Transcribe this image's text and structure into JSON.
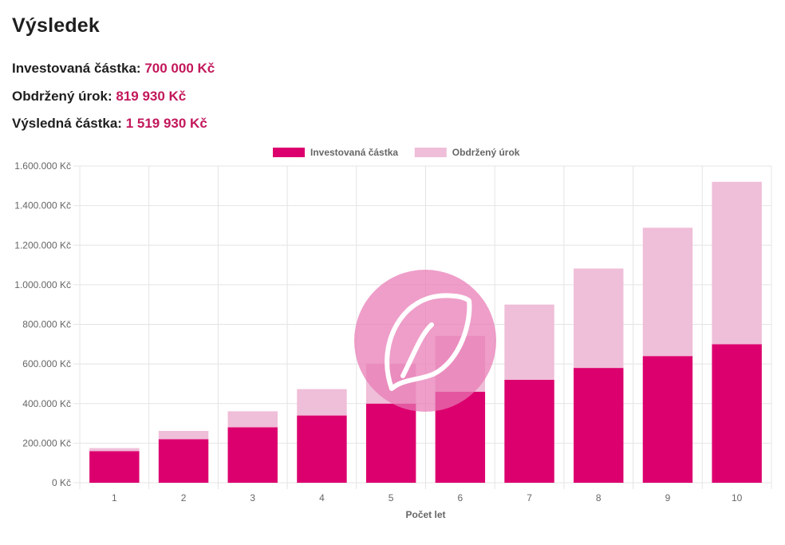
{
  "result": {
    "title": "Výsledek",
    "stats": [
      {
        "label": "Investovaná částka:",
        "value": "700 000 Kč"
      },
      {
        "label": "Obdržený úrok:",
        "value": "819 930 Kč"
      },
      {
        "label": "Výsledná částka:",
        "value": "1 519 930 Kč"
      }
    ]
  },
  "chart_data": {
    "type": "bar",
    "stacked": true,
    "categories": [
      "1",
      "2",
      "3",
      "4",
      "5",
      "6",
      "7",
      "8",
      "9",
      "10"
    ],
    "series": [
      {
        "name": "Investovaná částka",
        "color": "#dc006e",
        "values": [
          160000,
          220000,
          280000,
          340000,
          400000,
          460000,
          520000,
          580000,
          640000,
          700000
        ]
      },
      {
        "name": "Obdržený úrok",
        "color": "#efbed8",
        "values": [
          15000,
          42000,
          81000,
          133000,
          200000,
          282000,
          380000,
          502000,
          648000,
          819930
        ]
      }
    ],
    "xlabel": "Počet let",
    "ylabel": "",
    "ylim": [
      0,
      1600000
    ],
    "yticks": [
      0,
      200000,
      400000,
      600000,
      800000,
      1000000,
      1200000,
      1400000,
      1600000
    ],
    "ytick_labels": [
      "0 Kč",
      "200.000 Kč",
      "400.000 Kč",
      "600.000 Kč",
      "800.000 Kč",
      "1.000.000 Kč",
      "1.200.000 Kč",
      "1.400.000 Kč",
      "1.600.000 Kč"
    ],
    "grid": true,
    "legend": "top-center"
  },
  "watermark": {
    "icon": "leaf-logo-icon",
    "color": "#e879b4"
  }
}
